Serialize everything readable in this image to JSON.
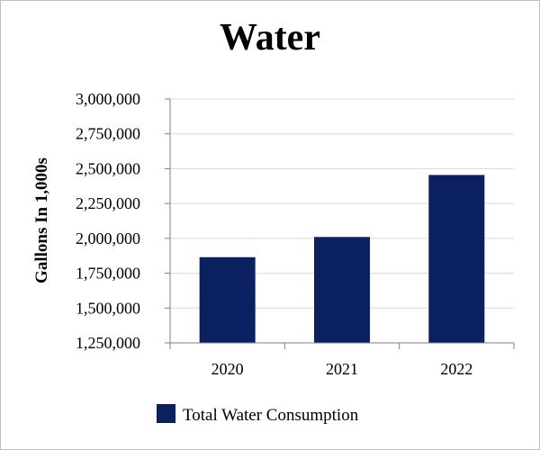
{
  "chart_data": {
    "type": "bar",
    "title": "Water",
    "xlabel": "",
    "ylabel": "Gallons In 1,000s",
    "categories": [
      "2020",
      "2021",
      "2022"
    ],
    "series": [
      {
        "name": "Total Water Consumption",
        "values": [
          1865000,
          2010000,
          2455000
        ],
        "color": "#0a2060"
      }
    ],
    "ylim": [
      1250000,
      3000000
    ],
    "yticks": [
      1250000,
      1500000,
      1750000,
      2000000,
      2250000,
      2500000,
      2750000,
      3000000
    ],
    "ytick_labels": [
      "1,250,000",
      "1,500,000",
      "1,750,000",
      "2,000,000",
      "2,250,000",
      "2,500,000",
      "2,750,000",
      "3,000,000"
    ],
    "grid": true,
    "legend_position": "bottom"
  },
  "colors": {
    "bar": "#0a2060",
    "grid": "#d9d9d9",
    "axis": "#7f7f7f",
    "frame": "#bfbfbf"
  }
}
